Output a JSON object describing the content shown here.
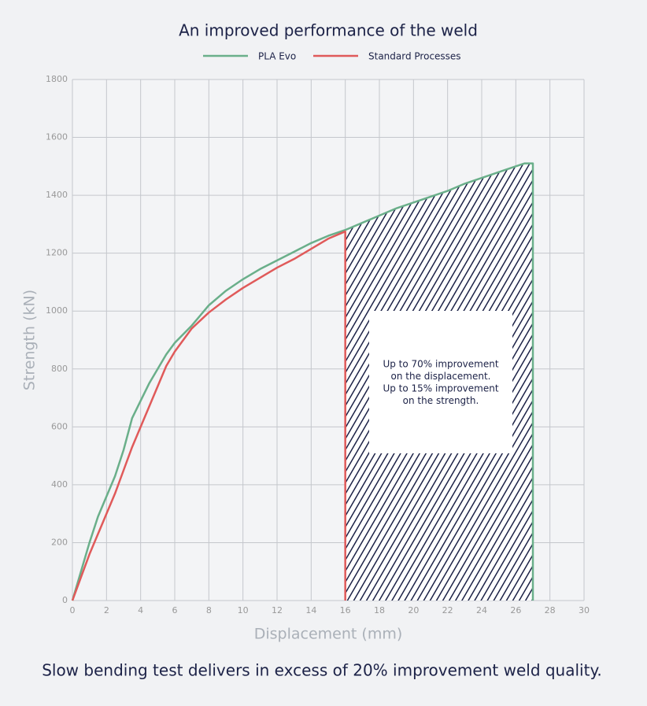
{
  "chart_data": {
    "type": "line",
    "title": "An improved performance of the weld",
    "x_label": "Displacement (mm)",
    "y_label": "Strength (kN)",
    "caption": "Slow bending test delivers in excess of 20% improvement weld quality.",
    "annotation": [
      "Up to 70% improvement",
      "on the displacement.",
      "Up to 15% improvement",
      "on the strength."
    ],
    "xlim": [
      0,
      30
    ],
    "xticks": [
      0,
      2,
      4,
      6,
      8,
      10,
      12,
      14,
      16,
      18,
      20,
      22,
      24,
      26,
      28,
      30
    ],
    "ylim": [
      0,
      1800
    ],
    "yticks": [
      0,
      200,
      400,
      600,
      800,
      1000,
      1200,
      1400,
      1600,
      1800
    ],
    "grid": true,
    "series": [
      {
        "name": "PLA Evo",
        "color": "#6aaf8a",
        "x": [
          0,
          0.5,
          1,
          1.5,
          2,
          2.5,
          3,
          3.5,
          4,
          4.5,
          5,
          5.5,
          6,
          7,
          8,
          9,
          10,
          11,
          12,
          13,
          14,
          15,
          16,
          17,
          18,
          19,
          20,
          21,
          22,
          23,
          24,
          25,
          26,
          26.5,
          27,
          27
        ],
        "values": [
          0,
          100,
          200,
          290,
          360,
          430,
          520,
          630,
          690,
          750,
          800,
          850,
          890,
          950,
          1020,
          1070,
          1110,
          1145,
          1175,
          1205,
          1235,
          1260,
          1280,
          1305,
          1330,
          1355,
          1375,
          1395,
          1415,
          1440,
          1460,
          1480,
          1500,
          1510,
          1510,
          0
        ]
      },
      {
        "name": "Standard Processes",
        "color": "#e05a5a",
        "x": [
          0,
          0.5,
          1,
          1.5,
          2,
          2.5,
          3,
          3.5,
          4,
          4.5,
          5,
          5.5,
          6,
          7,
          8,
          9,
          10,
          11,
          12,
          13,
          14,
          15,
          16,
          16
        ],
        "values": [
          0,
          80,
          160,
          230,
          300,
          370,
          450,
          530,
          600,
          670,
          740,
          810,
          860,
          940,
          995,
          1040,
          1080,
          1115,
          1150,
          1180,
          1215,
          1250,
          1275,
          0
        ]
      }
    ]
  }
}
